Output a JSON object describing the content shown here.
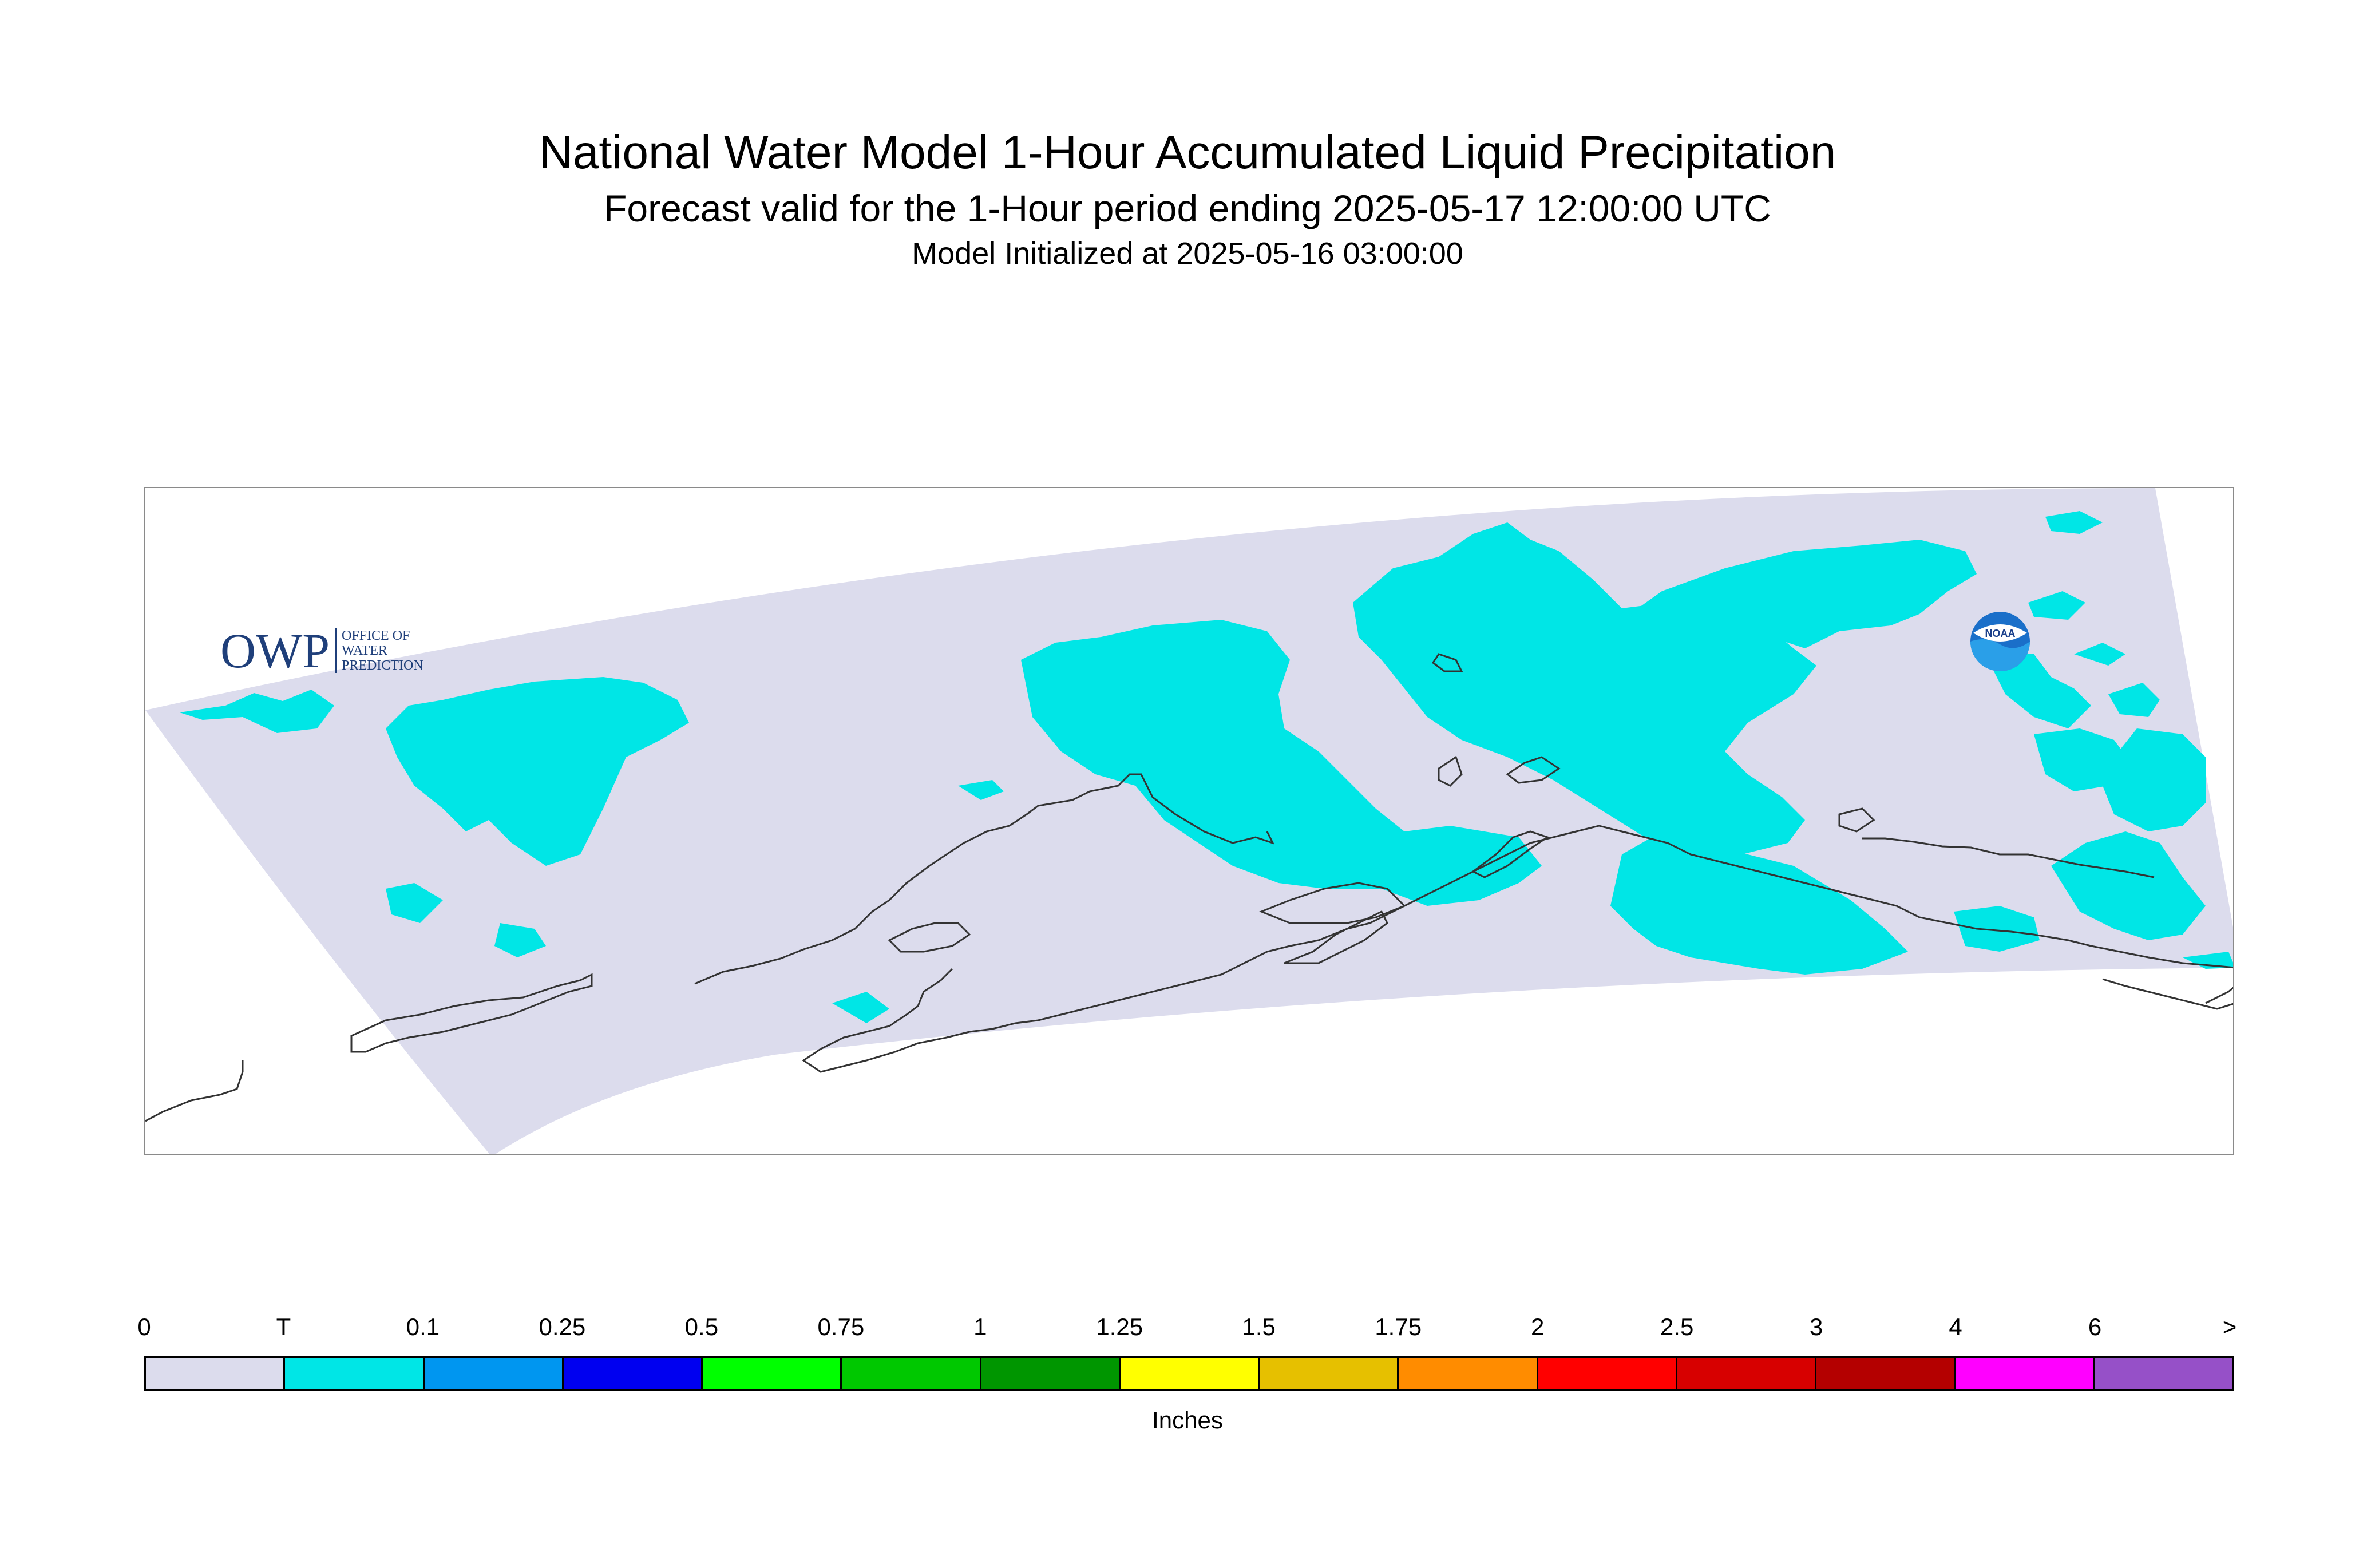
{
  "header": {
    "title": "National Water Model 1-Hour Accumulated Liquid Precipitation",
    "subtitle": "Forecast valid for the 1-Hour period ending 2025-05-17 12:00:00 UTC",
    "init_line": "Model Initialized at 2025-05-16 03:00:00"
  },
  "map": {
    "region": "Alaska",
    "background_color": "#dcdced",
    "precip_color": "#00e6e6",
    "coastline_color": "#333333",
    "frame_color": "#8a8a8a"
  },
  "logos": {
    "owp": {
      "mark": "OWP",
      "text_lines": [
        "OFFICE OF",
        "WATER",
        "PREDICTION"
      ],
      "color": "#1f3f7a"
    },
    "noaa": {
      "text": "NOAA",
      "color": "#1a6fc9"
    }
  },
  "legend": {
    "unit_label": "Inches",
    "ticks": [
      "0",
      "T",
      "0.1",
      "0.25",
      "0.5",
      "0.75",
      "1",
      "1.25",
      "1.5",
      "1.75",
      "2",
      "2.5",
      "3",
      "4",
      "6",
      ">"
    ],
    "colors": [
      "#dcdced",
      "#00e6e6",
      "#0096f0",
      "#0000f0",
      "#00ff00",
      "#00c800",
      "#009600",
      "#ffff00",
      "#e6c000",
      "#ff8c00",
      "#ff0000",
      "#d70000",
      "#b40000",
      "#ff00ff",
      "#9650c8"
    ]
  }
}
